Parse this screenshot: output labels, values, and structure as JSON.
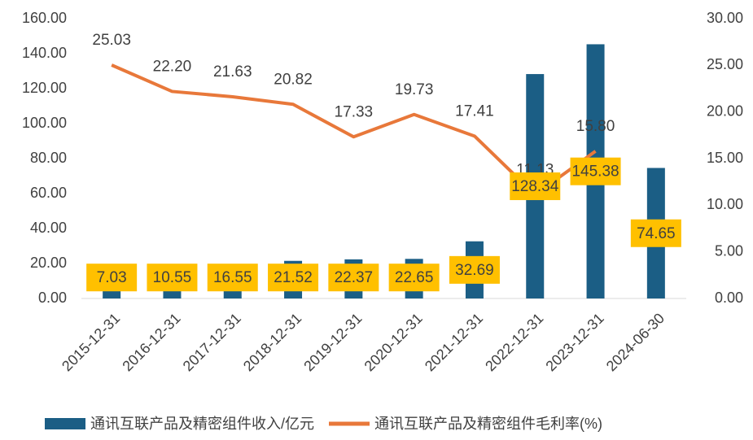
{
  "chart_data": {
    "type": "bar-line",
    "categories": [
      "2015-12-31",
      "2016-12-31",
      "2017-12-31",
      "2018-12-31",
      "2019-12-31",
      "2020-12-31",
      "2021-12-31",
      "2022-12-31",
      "2023-12-31",
      "2024-06-30"
    ],
    "series": [
      {
        "name": "通讯互联产品及精密组件收入/亿元",
        "type": "bar",
        "color": "#1b5e85",
        "values": [
          7.03,
          10.55,
          16.55,
          21.52,
          22.37,
          22.65,
          32.69,
          128.34,
          145.38,
          74.65
        ]
      },
      {
        "name": "通讯互联产品及精密组件毛利率(%)",
        "type": "line",
        "axis": "y2",
        "color": "#e8783a",
        "values": [
          25.03,
          22.2,
          21.63,
          20.82,
          17.33,
          19.73,
          17.41,
          11.13,
          15.8,
          null
        ],
        "value_labels": [
          "25.03",
          "22.20",
          "21.63",
          "20.82",
          "17.33",
          "19.73",
          "17.41",
          "11.13",
          "15.80",
          null
        ]
      }
    ],
    "ylim": [
      0,
      160
    ],
    "yticks": [
      {
        "value": 0,
        "label": "0.00"
      },
      {
        "value": 20,
        "label": "20.00"
      },
      {
        "value": 40,
        "label": "40.00"
      },
      {
        "value": 60,
        "label": "60.00"
      },
      {
        "value": 80,
        "label": "80.00"
      },
      {
        "value": 100,
        "label": "100.00"
      },
      {
        "value": 120,
        "label": "120.00"
      },
      {
        "value": 140,
        "label": "140.00"
      },
      {
        "value": 160,
        "label": "160.00"
      }
    ],
    "y2lim": [
      0,
      30
    ],
    "y2ticks": [
      {
        "value": 0,
        "label": "0.00"
      },
      {
        "value": 5,
        "label": "5.00"
      },
      {
        "value": 10,
        "label": "10.00"
      },
      {
        "value": 15,
        "label": "15.00"
      },
      {
        "value": 20,
        "label": "20.00"
      },
      {
        "value": 25,
        "label": "25.00"
      },
      {
        "value": 30,
        "label": "30.00"
      }
    ],
    "grid": false,
    "legend": "bottom",
    "label_box_color": "#ffc000"
  }
}
